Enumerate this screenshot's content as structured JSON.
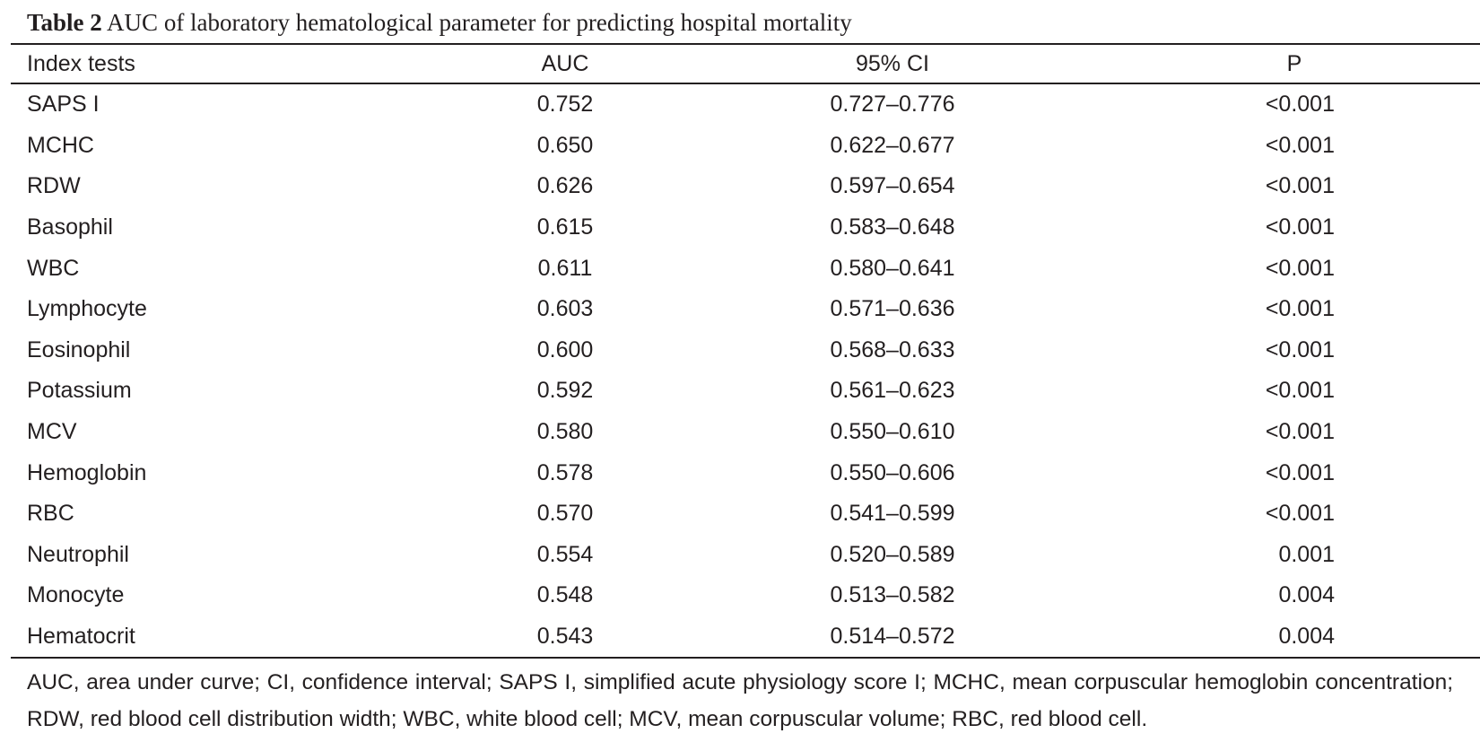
{
  "caption": {
    "label": "Table 2",
    "text": " AUC of laboratory hematological parameter for predicting hospital mortality"
  },
  "table": {
    "headers": [
      "Index tests",
      "AUC",
      "95% CI",
      "P"
    ],
    "rows": [
      [
        "SAPS I",
        "0.752",
        "0.727–0.776",
        "<0.001"
      ],
      [
        "MCHC",
        "0.650",
        "0.622–0.677",
        "<0.001"
      ],
      [
        "RDW",
        "0.626",
        "0.597–0.654",
        "<0.001"
      ],
      [
        "Basophil",
        "0.615",
        "0.583–0.648",
        "<0.001"
      ],
      [
        "WBC",
        "0.611",
        "0.580–0.641",
        "<0.001"
      ],
      [
        "Lymphocyte",
        "0.603",
        "0.571–0.636",
        "<0.001"
      ],
      [
        "Eosinophil",
        "0.600",
        "0.568–0.633",
        "<0.001"
      ],
      [
        "Potassium",
        "0.592",
        "0.561–0.623",
        "<0.001"
      ],
      [
        "MCV",
        "0.580",
        "0.550–0.610",
        "<0.001"
      ],
      [
        "Hemoglobin",
        "0.578",
        "0.550–0.606",
        "<0.001"
      ],
      [
        "RBC",
        "0.570",
        "0.541–0.599",
        "<0.001"
      ],
      [
        "Neutrophil",
        "0.554",
        "0.520–0.589",
        "0.001"
      ],
      [
        "Monocyte",
        "0.548",
        "0.513–0.582",
        "0.004"
      ],
      [
        "Hematocrit",
        "0.543",
        "0.514–0.572",
        "0.004"
      ]
    ]
  },
  "footnote": "AUC, area under curve; CI, confidence interval; SAPS I, simplified acute physiology score I; MCHC, mean corpuscular hemoglobin concentration; RDW, red blood cell distribution width; WBC, white blood cell; MCV, mean corpuscular volume; RBC, red blood cell."
}
